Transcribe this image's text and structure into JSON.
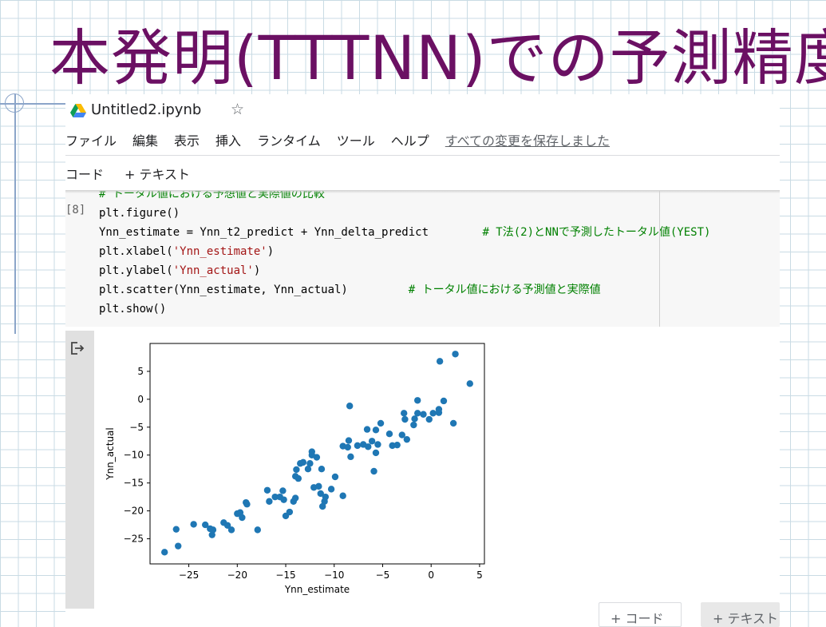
{
  "slide": {
    "title": "本発明(TTTNN)での予測精度"
  },
  "notebook": {
    "title": "Untitled2.ipynb",
    "star_icon": "☆",
    "menu": [
      "ファイル",
      "編集",
      "表示",
      "挿入",
      "ランタイム",
      "ツール",
      "ヘルプ"
    ],
    "save_status": "すべての変更を保存しました",
    "toolbar": {
      "code_button": "コード",
      "text_button": "+ テキスト"
    },
    "cell": {
      "execution_count": "[8]",
      "lines": [
        {
          "code": "# トータル値における予想値と実際値の比較",
          "comment": ""
        },
        {
          "code": "plt.figure()",
          "comment": ""
        },
        {
          "code": "Ynn_estimate = Ynn_t2_predict + Ynn_delta_predict        ",
          "comment": "# T法(2)とNNで予測したトータル値(YEST)"
        },
        {
          "code_prefix": "plt.xlabel(",
          "string": "'Ynn_estimate'",
          "code_suffix": ")"
        },
        {
          "code_prefix": "plt.ylabel(",
          "string": "'Ynn_actual'",
          "code_suffix": ")"
        },
        {
          "code": "plt.scatter(Ynn_estimate, Ynn_actual)         ",
          "comment": "# トータル値における予測値と実際値"
        },
        {
          "code": "plt.show()",
          "comment": ""
        }
      ]
    },
    "add_buttons": {
      "code": "+ コード",
      "text": "+ テキスト"
    }
  },
  "chart_data": {
    "type": "scatter",
    "title": "",
    "xlabel": "Ynn_estimate",
    "ylabel": "Ynn_actual",
    "xlim": [
      -29,
      5.5
    ],
    "ylim": [
      -29.5,
      10
    ],
    "xticks": [
      -25,
      -20,
      -15,
      -10,
      -5,
      0,
      5
    ],
    "yticks": [
      -25,
      -20,
      -15,
      -10,
      -5,
      0,
      5
    ],
    "xtick_labels": [
      "−25",
      "−20",
      "−15",
      "−10",
      "−5",
      "0",
      "5"
    ],
    "ytick_labels": [
      "−25",
      "−20",
      "−15",
      "−10",
      "−5",
      "0",
      "5"
    ],
    "marker_color": "#1f77b4",
    "points": [
      [
        -27.5,
        -27.4
      ],
      [
        -26.1,
        -26.3
      ],
      [
        -26.3,
        -23.3
      ],
      [
        -24.5,
        -22.4
      ],
      [
        -23.3,
        -22.5
      ],
      [
        -22.8,
        -23.2
      ],
      [
        -22.6,
        -24.3
      ],
      [
        -22.5,
        -23.4
      ],
      [
        -21.4,
        -22.1
      ],
      [
        -21.0,
        -22.6
      ],
      [
        -20.6,
        -23.4
      ],
      [
        -20.0,
        -20.5
      ],
      [
        -19.7,
        -20.3
      ],
      [
        -19.5,
        -21.2
      ],
      [
        -19.1,
        -18.5
      ],
      [
        -19.0,
        -18.8
      ],
      [
        -17.9,
        -23.4
      ],
      [
        -16.9,
        -16.3
      ],
      [
        -16.7,
        -18.3
      ],
      [
        -16.1,
        -17.5
      ],
      [
        -15.6,
        -17.5
      ],
      [
        -15.3,
        -16.4
      ],
      [
        -15.2,
        -18.0
      ],
      [
        -15.0,
        -20.9
      ],
      [
        -14.6,
        -20.2
      ],
      [
        -14.2,
        -18.3
      ],
      [
        -14.0,
        -17.7
      ],
      [
        -14.0,
        -13.8
      ],
      [
        -13.9,
        -12.6
      ],
      [
        -13.7,
        -14.2
      ],
      [
        -13.5,
        -11.5
      ],
      [
        -13.2,
        -11.3
      ],
      [
        -12.7,
        -12.5
      ],
      [
        -12.5,
        -11.5
      ],
      [
        -12.3,
        -10.0
      ],
      [
        -12.3,
        -9.4
      ],
      [
        -12.1,
        -15.8
      ],
      [
        -11.8,
        -10.4
      ],
      [
        -11.6,
        -15.6
      ],
      [
        -11.4,
        -16.9
      ],
      [
        -11.3,
        -12.5
      ],
      [
        -11.2,
        -19.2
      ],
      [
        -11.0,
        -18.3
      ],
      [
        -10.9,
        -17.5
      ],
      [
        -10.3,
        -16.1
      ],
      [
        -9.9,
        -13.9
      ],
      [
        -9.1,
        -8.4
      ],
      [
        -9.1,
        -17.3
      ],
      [
        -8.6,
        -8.6
      ],
      [
        -8.5,
        -7.4
      ],
      [
        -8.4,
        -1.2
      ],
      [
        -8.3,
        -10.3
      ],
      [
        -7.6,
        -8.3
      ],
      [
        -7.0,
        -8.1
      ],
      [
        -6.6,
        -5.4
      ],
      [
        -6.5,
        -8.5
      ],
      [
        -6.1,
        -7.5
      ],
      [
        -5.9,
        -12.9
      ],
      [
        -5.7,
        -9.6
      ],
      [
        -5.7,
        -5.5
      ],
      [
        -5.5,
        -8.1
      ],
      [
        -5.2,
        -4.3
      ],
      [
        -4.3,
        -6.2
      ],
      [
        -4.0,
        -8.3
      ],
      [
        -3.5,
        -8.2
      ],
      [
        -3.0,
        -6.4
      ],
      [
        -2.8,
        -2.5
      ],
      [
        -2.7,
        -3.6
      ],
      [
        -2.5,
        -7.2
      ],
      [
        -1.8,
        -4.6
      ],
      [
        -1.7,
        -3.5
      ],
      [
        -1.4,
        -2.5
      ],
      [
        -1.4,
        -0.2
      ],
      [
        -0.8,
        -2.7
      ],
      [
        -0.2,
        -3.6
      ],
      [
        0.2,
        -2.5
      ],
      [
        0.8,
        -2.4
      ],
      [
        0.8,
        -1.8
      ],
      [
        1.3,
        -0.3
      ],
      [
        0.9,
        6.8
      ],
      [
        2.3,
        -4.3
      ],
      [
        2.5,
        8.1
      ],
      [
        4.0,
        2.8
      ]
    ]
  }
}
